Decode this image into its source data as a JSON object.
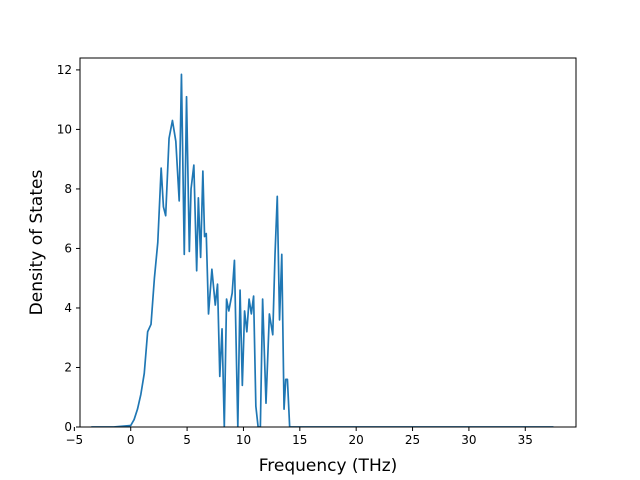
{
  "chart_data": {
    "type": "line",
    "title": "",
    "xlabel": "Frequency (THz)",
    "ylabel": "Density of States",
    "xlim": [
      -4.5,
      39.5
    ],
    "ylim": [
      0,
      12.4
    ],
    "xticks": [
      -5,
      0,
      5,
      10,
      15,
      20,
      25,
      30,
      35
    ],
    "yticks": [
      0,
      2,
      4,
      6,
      8,
      10,
      12
    ],
    "grid": false,
    "legend": "none",
    "line_color": "#1f77b4",
    "series": [
      {
        "x": [
          -3.5,
          -1.5,
          0,
          0.3,
          0.6,
          0.9,
          1.2,
          1.5,
          1.8,
          2.1,
          2.4,
          2.7,
          2.9,
          3.1,
          3.4,
          3.7,
          4.0,
          4.3,
          4.5,
          4.75,
          4.95,
          5.2,
          5.35,
          5.6,
          5.85,
          6.0,
          6.2,
          6.4,
          6.55,
          6.7,
          6.9,
          7.2,
          7.5,
          7.7,
          7.9,
          8.1,
          8.3,
          8.5,
          8.7,
          9.0,
          9.2,
          9.5,
          9.7,
          9.9,
          10.1,
          10.3,
          10.5,
          10.7,
          10.9,
          11.1,
          11.3,
          11.5,
          11.7,
          12.0,
          12.3,
          12.6,
          12.8,
          13.0,
          13.2,
          13.4,
          13.6,
          13.75,
          13.9,
          14.1,
          14.3,
          14.5,
          14.7,
          14.9,
          15.2,
          15.5,
          15.8,
          16.0,
          16.2,
          16.4,
          16.6,
          16.8,
          17.0,
          17.2,
          17.4,
          17.6,
          17.8,
          18.0,
          18.2,
          18.4,
          18.6,
          18.8,
          19.0,
          19.2,
          19.4,
          19.6,
          19.8,
          20.0,
          20.2,
          20.4,
          20.6,
          20.8,
          21.0,
          21.2,
          21.4,
          21.6,
          21.8,
          22.0,
          24.0,
          30.0,
          37.5
        ],
        "y": [
          0,
          0,
          0.05,
          0.25,
          0.6,
          1.1,
          1.8,
          3.2,
          3.45,
          5.0,
          6.2,
          8.7,
          7.4,
          7.1,
          9.7,
          10.3,
          9.6,
          7.6,
          11.85,
          5.8,
          11.1,
          5.9,
          8.0,
          8.8,
          5.25,
          7.7,
          5.7,
          8.6,
          6.4,
          6.5,
          3.8,
          5.3,
          4.1,
          4.8,
          1.7,
          3.3,
          0,
          4.3,
          3.9,
          4.5,
          5.6,
          0,
          4.6,
          1.4,
          3.9,
          3.2,
          4.3,
          3.8,
          4.4,
          0.7,
          0,
          0,
          4.3,
          0.8,
          3.8,
          3.1,
          5.8,
          7.75,
          3.6,
          5.8,
          0.6,
          1.6,
          1.6,
          0,
          0,
          0,
          0,
          0,
          0,
          0,
          0,
          0,
          0,
          0,
          0,
          0,
          0,
          0,
          0,
          0,
          0,
          0,
          0,
          0,
          0,
          0,
          0,
          0,
          0,
          0,
          0,
          0,
          0,
          0,
          0,
          0,
          0,
          0,
          0,
          0,
          0,
          0,
          0,
          0,
          0
        ]
      }
    ]
  }
}
